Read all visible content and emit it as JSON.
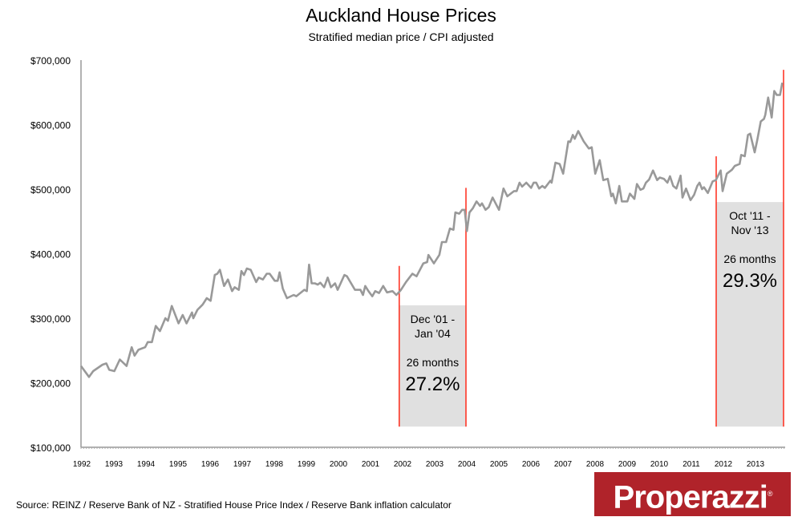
{
  "chart_data": {
    "type": "line",
    "title": "Auckland House Prices",
    "subtitle": "Stratified median price / CPI adjusted",
    "xlabel": "",
    "ylabel": "",
    "xlim": [
      1992,
      2014
    ],
    "ylim": [
      100000,
      700000
    ],
    "x_ticks": [
      "1992",
      "1993",
      "1994",
      "1995",
      "1996",
      "1997",
      "1998",
      "1999",
      "2000",
      "2001",
      "2002",
      "2003",
      "2004",
      "2005",
      "2006",
      "2007",
      "2008",
      "2009",
      "2010",
      "2011",
      "2012",
      "2013"
    ],
    "y_ticks": [
      "$100,000",
      "$200,000",
      "$300,000",
      "$400,000",
      "$500,000",
      "$600,000",
      "$700,000"
    ],
    "y_tick_values": [
      100000,
      200000,
      300000,
      400000,
      500000,
      600000,
      700000
    ],
    "grid": false,
    "line_color": "#999999",
    "series": [
      {
        "points": [
          [
            1992.0,
            226
          ],
          [
            1992.25,
            209
          ],
          [
            1992.38,
            218
          ],
          [
            1992.67,
            228
          ],
          [
            1992.79,
            230
          ],
          [
            1992.88,
            220
          ],
          [
            1993.04,
            218
          ],
          [
            1993.21,
            236
          ],
          [
            1993.42,
            226
          ],
          [
            1993.58,
            255
          ],
          [
            1993.67,
            242
          ],
          [
            1993.79,
            251
          ],
          [
            1994.0,
            255
          ],
          [
            1994.08,
            263
          ],
          [
            1994.21,
            263
          ],
          [
            1994.33,
            288
          ],
          [
            1994.46,
            280
          ],
          [
            1994.63,
            300
          ],
          [
            1994.71,
            296
          ],
          [
            1994.83,
            319
          ],
          [
            1995.04,
            292
          ],
          [
            1995.17,
            305
          ],
          [
            1995.29,
            292
          ],
          [
            1995.46,
            309
          ],
          [
            1995.5,
            300
          ],
          [
            1995.63,
            313
          ],
          [
            1995.79,
            321
          ],
          [
            1995.92,
            331
          ],
          [
            1996.04,
            327
          ],
          [
            1996.17,
            367
          ],
          [
            1996.25,
            369
          ],
          [
            1996.33,
            375
          ],
          [
            1996.46,
            350
          ],
          [
            1996.58,
            360
          ],
          [
            1996.71,
            342
          ],
          [
            1996.79,
            348
          ],
          [
            1996.92,
            344
          ],
          [
            1997.0,
            373
          ],
          [
            1997.08,
            367
          ],
          [
            1997.17,
            377
          ],
          [
            1997.29,
            375
          ],
          [
            1997.46,
            356
          ],
          [
            1997.54,
            363
          ],
          [
            1997.67,
            360
          ],
          [
            1997.79,
            369
          ],
          [
            1997.88,
            369
          ],
          [
            1998.04,
            358
          ],
          [
            1998.13,
            358
          ],
          [
            1998.19,
            371
          ],
          [
            1998.29,
            346
          ],
          [
            1998.42,
            331
          ],
          [
            1998.63,
            336
          ],
          [
            1998.71,
            334
          ],
          [
            1998.96,
            344
          ],
          [
            1999.04,
            342
          ],
          [
            1999.11,
            383
          ],
          [
            1999.19,
            354
          ],
          [
            1999.29,
            354
          ],
          [
            1999.38,
            352
          ],
          [
            1999.46,
            355
          ],
          [
            1999.58,
            348
          ],
          [
            1999.69,
            363
          ],
          [
            1999.79,
            348
          ],
          [
            1999.92,
            354
          ],
          [
            2000.0,
            344
          ],
          [
            2000.21,
            367
          ],
          [
            2000.29,
            365
          ],
          [
            2000.54,
            344
          ],
          [
            2000.71,
            344
          ],
          [
            2000.79,
            336
          ],
          [
            2000.86,
            350
          ],
          [
            2000.96,
            342
          ],
          [
            2001.08,
            334
          ],
          [
            2001.17,
            342
          ],
          [
            2001.29,
            339
          ],
          [
            2001.42,
            350
          ],
          [
            2001.54,
            340
          ],
          [
            2001.71,
            342
          ],
          [
            2001.83,
            336
          ],
          [
            2001.96,
            343
          ],
          [
            2002.13,
            356
          ],
          [
            2002.33,
            369
          ],
          [
            2002.46,
            365
          ],
          [
            2002.67,
            385
          ],
          [
            2002.79,
            387
          ],
          [
            2002.83,
            398
          ],
          [
            2003.0,
            385
          ],
          [
            2003.17,
            398
          ],
          [
            2003.25,
            418
          ],
          [
            2003.38,
            418
          ],
          [
            2003.5,
            439
          ],
          [
            2003.61,
            437
          ],
          [
            2003.67,
            464
          ],
          [
            2003.79,
            462
          ],
          [
            2003.88,
            468
          ],
          [
            2003.96,
            468
          ],
          [
            2004.03,
            435
          ],
          [
            2004.11,
            464
          ],
          [
            2004.21,
            470
          ],
          [
            2004.33,
            481
          ],
          [
            2004.44,
            474
          ],
          [
            2004.5,
            478
          ],
          [
            2004.61,
            468
          ],
          [
            2004.71,
            472
          ],
          [
            2004.83,
            487
          ],
          [
            2005.03,
            468
          ],
          [
            2005.17,
            501
          ],
          [
            2005.29,
            489
          ],
          [
            2005.5,
            497
          ],
          [
            2005.58,
            497
          ],
          [
            2005.67,
            510
          ],
          [
            2005.75,
            504
          ],
          [
            2005.88,
            510
          ],
          [
            2006.03,
            502
          ],
          [
            2006.11,
            510
          ],
          [
            2006.19,
            510
          ],
          [
            2006.28,
            501
          ],
          [
            2006.38,
            505
          ],
          [
            2006.46,
            502
          ],
          [
            2006.63,
            513
          ],
          [
            2006.67,
            510
          ],
          [
            2006.79,
            541
          ],
          [
            2006.92,
            539
          ],
          [
            2007.03,
            524
          ],
          [
            2007.19,
            574
          ],
          [
            2007.25,
            573
          ],
          [
            2007.33,
            584
          ],
          [
            2007.39,
            578
          ],
          [
            2007.5,
            590
          ],
          [
            2007.67,
            574
          ],
          [
            2007.83,
            563
          ],
          [
            2007.92,
            565
          ],
          [
            2008.03,
            524
          ],
          [
            2008.17,
            545
          ],
          [
            2008.28,
            514
          ],
          [
            2008.42,
            516
          ],
          [
            2008.53,
            489
          ],
          [
            2008.58,
            493
          ],
          [
            2008.67,
            478
          ],
          [
            2008.78,
            505
          ],
          [
            2008.86,
            481
          ],
          [
            2009.03,
            481
          ],
          [
            2009.11,
            493
          ],
          [
            2009.25,
            485
          ],
          [
            2009.33,
            508
          ],
          [
            2009.44,
            499
          ],
          [
            2009.53,
            501
          ],
          [
            2009.61,
            510
          ],
          [
            2009.71,
            515
          ],
          [
            2009.83,
            529
          ],
          [
            2009.96,
            514
          ],
          [
            2010.04,
            518
          ],
          [
            2010.17,
            516
          ],
          [
            2010.28,
            510
          ],
          [
            2010.36,
            520
          ],
          [
            2010.46,
            505
          ],
          [
            2010.56,
            501
          ],
          [
            2010.69,
            521
          ],
          [
            2010.75,
            487
          ],
          [
            2010.86,
            501
          ],
          [
            2011.0,
            483
          ],
          [
            2011.11,
            491
          ],
          [
            2011.21,
            505
          ],
          [
            2011.28,
            510
          ],
          [
            2011.36,
            500
          ],
          [
            2011.42,
            503
          ],
          [
            2011.54,
            494
          ],
          [
            2011.69,
            512
          ],
          [
            2011.79,
            514
          ],
          [
            2011.94,
            529
          ],
          [
            2012.0,
            497
          ],
          [
            2012.13,
            524
          ],
          [
            2012.29,
            530
          ],
          [
            2012.38,
            536
          ],
          [
            2012.53,
            539
          ],
          [
            2012.58,
            553
          ],
          [
            2012.69,
            551
          ],
          [
            2012.79,
            584
          ],
          [
            2012.86,
            586
          ],
          [
            2013.0,
            557
          ],
          [
            2013.08,
            576
          ],
          [
            2013.19,
            605
          ],
          [
            2013.29,
            609
          ],
          [
            2013.33,
            615
          ],
          [
            2013.42,
            642
          ],
          [
            2013.53,
            611
          ],
          [
            2013.61,
            652
          ],
          [
            2013.69,
            646
          ],
          [
            2013.79,
            646
          ],
          [
            2013.86,
            665
          ]
        ],
        "value_unit": "thousands NZD"
      }
    ],
    "annotations": [
      {
        "start": 2001.92,
        "end": 2004.0,
        "line_color": "#ff2a1a",
        "box_color": "#e0e0e0",
        "start_line_top": 381,
        "end_line_top": 502,
        "box_top": 320,
        "box_bottom": 132,
        "period_line1": "Dec '01 -",
        "period_line2": "Jan '04",
        "duration": "26 months",
        "change": "27.2%"
      },
      {
        "start": 2011.8,
        "end": 2013.9,
        "line_color": "#ff2a1a",
        "box_color": "#e0e0e0",
        "start_line_top": 551,
        "end_line_top": 685,
        "box_top": 480,
        "box_bottom": 132,
        "period_line1": "Oct '11 -",
        "period_line2": "Nov '13",
        "duration": "26 months",
        "change": "29.3%"
      }
    ]
  },
  "footer": {
    "source": "Source: REINZ / Reserve Bank of NZ - Stratified House Price Index / Reserve Bank inflation calculator",
    "logo_text": "Properazzi",
    "logo_color": "#b0232a"
  }
}
